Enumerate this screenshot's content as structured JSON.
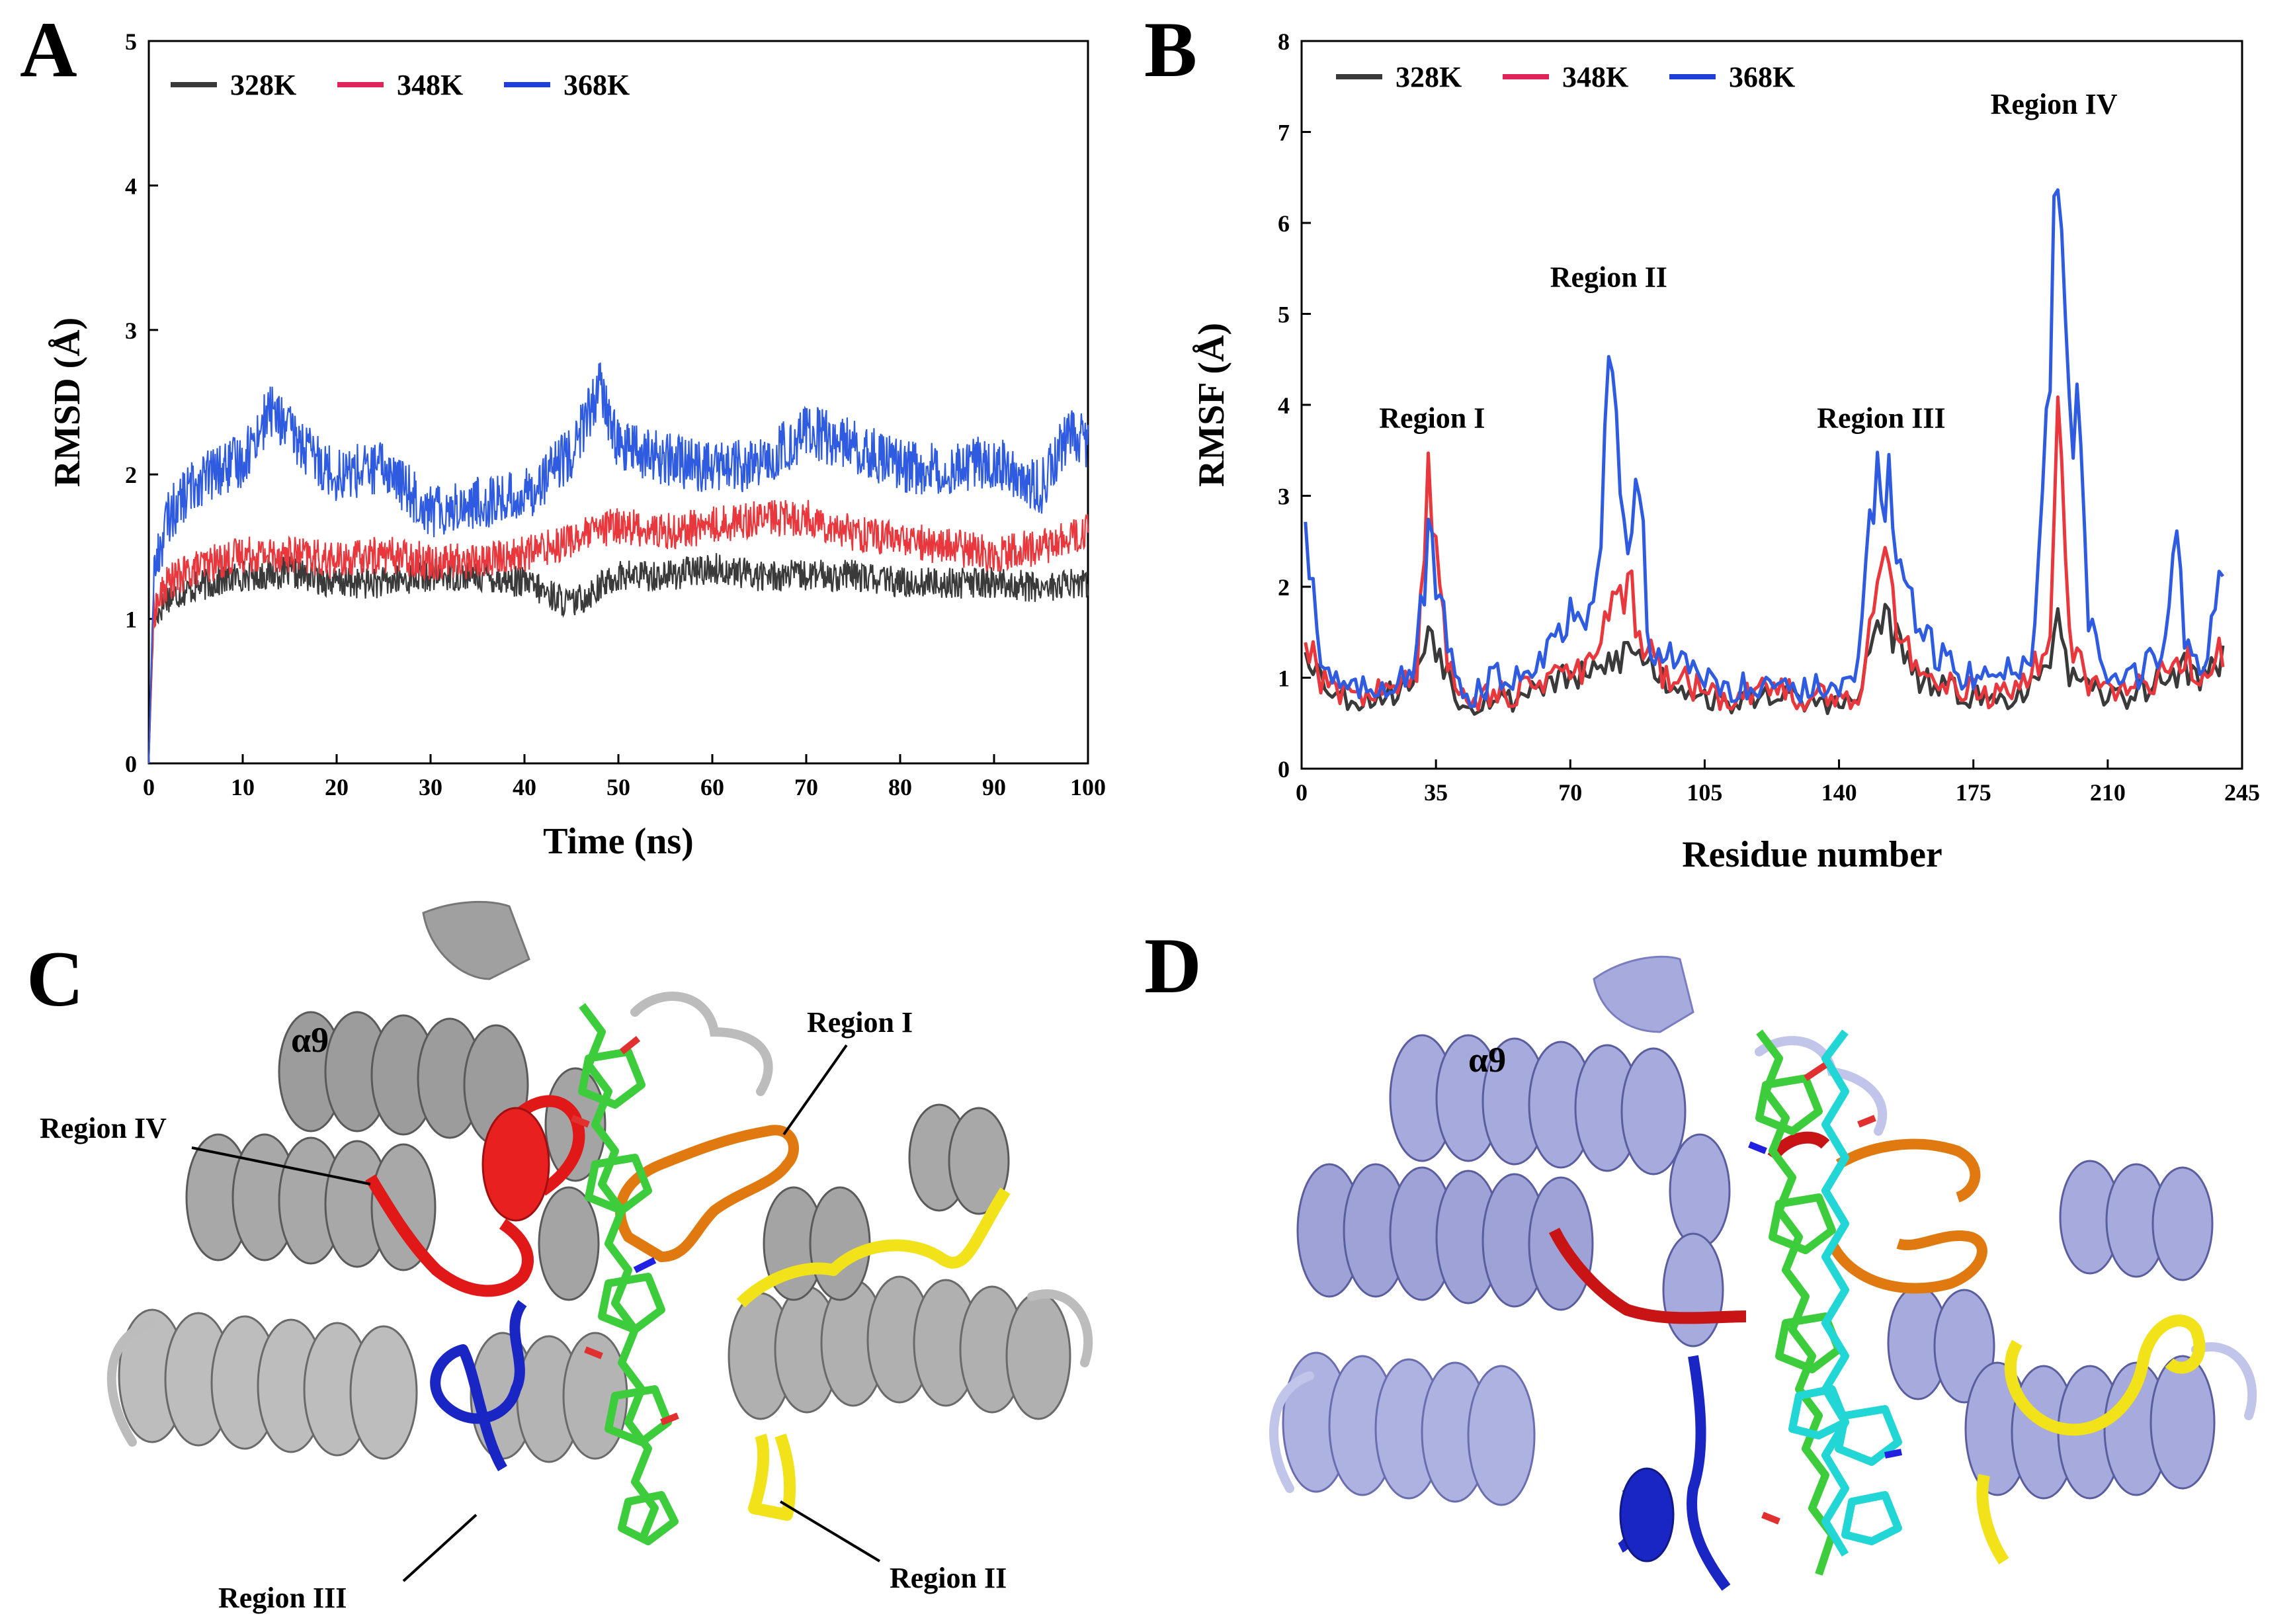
{
  "panels": {
    "A": "A",
    "B": "B",
    "C": "C",
    "D": "D"
  },
  "colors": {
    "328K": "#3a3a3a",
    "348K": "#e8383d",
    "368K": "#2f5be0",
    "legend_348K": "#e0245a",
    "legend_368K": "#1f3fd6",
    "helix_gray": "#9c9c9c",
    "helix_lavender": "#a6aadc",
    "region_I": "#e07a10",
    "region_II": "#f2e21a",
    "region_III": "#1a26c4",
    "region_IV": "#e01818",
    "ligand_green": "#3ccc3c",
    "ligand_cyan": "#22d6d6"
  },
  "structure_labels": {
    "C": {
      "alpha9": "α9",
      "region_I": "Region I",
      "region_II": "Region II",
      "region_III": "Region III",
      "region_IV": "Region IV"
    },
    "D": {
      "alpha9": "α9"
    }
  },
  "chart_data": [
    {
      "id": "A",
      "type": "line",
      "xlabel": "Time (ns)",
      "ylabel": "RMSD (Å)",
      "xlim": [
        0,
        100
      ],
      "ylim": [
        0,
        5
      ],
      "xticks": [
        0,
        10,
        20,
        30,
        40,
        50,
        60,
        70,
        80,
        90,
        100
      ],
      "yticks": [
        0,
        1,
        2,
        3,
        4,
        5
      ],
      "grid": false,
      "legend": "top-left",
      "series": [
        {
          "name": "328K",
          "x": [
            0,
            0.5,
            2,
            5,
            10,
            15,
            20,
            25,
            30,
            35,
            40,
            45,
            50,
            55,
            60,
            65,
            70,
            75,
            80,
            85,
            90,
            95,
            100
          ],
          "values": [
            0.0,
            1.0,
            1.15,
            1.22,
            1.3,
            1.32,
            1.25,
            1.25,
            1.3,
            1.3,
            1.25,
            1.1,
            1.3,
            1.3,
            1.35,
            1.3,
            1.3,
            1.3,
            1.25,
            1.25,
            1.25,
            1.22,
            1.25
          ]
        },
        {
          "name": "348K",
          "x": [
            0,
            0.5,
            2,
            5,
            10,
            15,
            20,
            25,
            30,
            35,
            40,
            45,
            50,
            55,
            60,
            65,
            70,
            75,
            80,
            85,
            90,
            95,
            100
          ],
          "values": [
            0.0,
            1.05,
            1.25,
            1.35,
            1.45,
            1.45,
            1.4,
            1.45,
            1.4,
            1.4,
            1.45,
            1.55,
            1.65,
            1.6,
            1.65,
            1.7,
            1.7,
            1.6,
            1.55,
            1.5,
            1.45,
            1.5,
            1.6
          ]
        },
        {
          "name": "368K",
          "x": [
            0,
            0.5,
            2,
            5,
            10,
            13,
            17,
            20,
            25,
            30,
            35,
            40,
            45,
            48,
            50,
            55,
            60,
            65,
            70,
            75,
            80,
            85,
            90,
            95,
            98,
            100
          ],
          "values": [
            0.0,
            1.3,
            1.7,
            1.95,
            2.1,
            2.45,
            2.15,
            2.0,
            2.05,
            1.75,
            1.8,
            1.85,
            2.15,
            2.6,
            2.2,
            2.1,
            2.05,
            2.05,
            2.3,
            2.2,
            2.05,
            2.05,
            2.1,
            1.9,
            2.3,
            2.2
          ]
        }
      ]
    },
    {
      "id": "B",
      "type": "line",
      "xlabel": "Residue number",
      "ylabel": "RMSF (Å)",
      "xlim": [
        0,
        245
      ],
      "ylim": [
        0,
        8
      ],
      "xticks": [
        0,
        35,
        70,
        105,
        140,
        175,
        210,
        245
      ],
      "yticks": [
        0,
        1,
        2,
        3,
        4,
        5,
        6,
        7,
        8
      ],
      "grid": false,
      "legend": "top-left",
      "annotations": [
        {
          "text": "Region I",
          "x": 34,
          "y": 3.75
        },
        {
          "text": "Region II",
          "x": 80,
          "y": 5.3
        },
        {
          "text": "Region III",
          "x": 151,
          "y": 3.75
        },
        {
          "text": "Region IV",
          "x": 196,
          "y": 7.2
        }
      ],
      "series": [
        {
          "name": "328K",
          "x": [
            1,
            5,
            10,
            15,
            20,
            25,
            30,
            33,
            37,
            40,
            45,
            50,
            55,
            60,
            65,
            70,
            75,
            80,
            85,
            90,
            95,
            100,
            105,
            110,
            115,
            120,
            125,
            130,
            135,
            140,
            145,
            150,
            152,
            155,
            160,
            165,
            170,
            175,
            180,
            185,
            190,
            195,
            197,
            200,
            205,
            210,
            215,
            220,
            225,
            230,
            235,
            240
          ],
          "values": [
            1.4,
            1.0,
            0.8,
            0.75,
            0.8,
            0.85,
            1.0,
            1.6,
            1.2,
            0.8,
            0.7,
            0.8,
            0.75,
            0.9,
            0.95,
            1.0,
            1.0,
            1.15,
            1.3,
            1.2,
            0.95,
            0.9,
            0.8,
            0.7,
            0.75,
            0.8,
            0.85,
            0.7,
            0.75,
            0.7,
            0.75,
            1.6,
            1.7,
            1.4,
            1.0,
            0.9,
            0.85,
            0.8,
            0.75,
            0.8,
            0.9,
            1.0,
            2.05,
            1.0,
            0.85,
            0.8,
            0.8,
            0.9,
            1.0,
            1.1,
            1.0,
            1.2
          ]
        },
        {
          "name": "348K",
          "x": [
            1,
            5,
            10,
            15,
            20,
            25,
            30,
            33,
            37,
            40,
            45,
            50,
            55,
            60,
            65,
            70,
            75,
            80,
            85,
            90,
            95,
            100,
            105,
            110,
            115,
            120,
            125,
            130,
            135,
            140,
            145,
            150,
            152,
            155,
            160,
            165,
            170,
            175,
            180,
            185,
            190,
            195,
            197,
            200,
            205,
            210,
            215,
            220,
            225,
            230,
            235,
            240
          ],
          "values": [
            1.5,
            1.0,
            0.85,
            0.8,
            0.85,
            0.9,
            1.0,
            3.35,
            1.5,
            0.85,
            0.75,
            0.85,
            0.8,
            0.95,
            1.0,
            1.05,
            1.1,
            1.6,
            2.0,
            1.3,
            1.0,
            0.95,
            0.85,
            0.75,
            0.8,
            0.85,
            0.9,
            0.75,
            0.8,
            0.75,
            0.8,
            2.0,
            2.15,
            1.7,
            1.1,
            1.0,
            0.9,
            0.85,
            0.8,
            0.85,
            1.0,
            1.5,
            3.8,
            1.5,
            0.9,
            0.85,
            0.85,
            0.95,
            1.05,
            1.2,
            1.05,
            1.3
          ]
        },
        {
          "name": "368K",
          "x": [
            1,
            5,
            10,
            15,
            20,
            25,
            30,
            33,
            37,
            40,
            45,
            50,
            55,
            60,
            65,
            70,
            75,
            78,
            80,
            82,
            85,
            88,
            90,
            95,
            100,
            105,
            110,
            115,
            120,
            125,
            130,
            135,
            140,
            145,
            148,
            150,
            152,
            155,
            160,
            165,
            170,
            175,
            180,
            185,
            190,
            193,
            195,
            197,
            200,
            203,
            205,
            210,
            215,
            220,
            225,
            228,
            230,
            235,
            240
          ],
          "values": [
            2.9,
            1.2,
            0.9,
            0.85,
            0.9,
            1.0,
            1.2,
            2.5,
            1.6,
            0.9,
            0.8,
            1.0,
            1.0,
            1.2,
            1.4,
            1.6,
            1.9,
            2.6,
            4.85,
            3.5,
            2.2,
            3.5,
            1.5,
            1.2,
            1.1,
            1.0,
            0.85,
            0.9,
            0.95,
            1.0,
            0.85,
            0.9,
            0.85,
            1.1,
            2.5,
            3.35,
            3.2,
            2.5,
            1.5,
            1.3,
            1.1,
            1.0,
            1.0,
            1.1,
            1.3,
            2.8,
            5.0,
            6.75,
            3.5,
            4.25,
            1.5,
            1.0,
            1.0,
            1.1,
            1.3,
            2.8,
            1.3,
            1.2,
            2.25
          ]
        }
      ]
    }
  ]
}
